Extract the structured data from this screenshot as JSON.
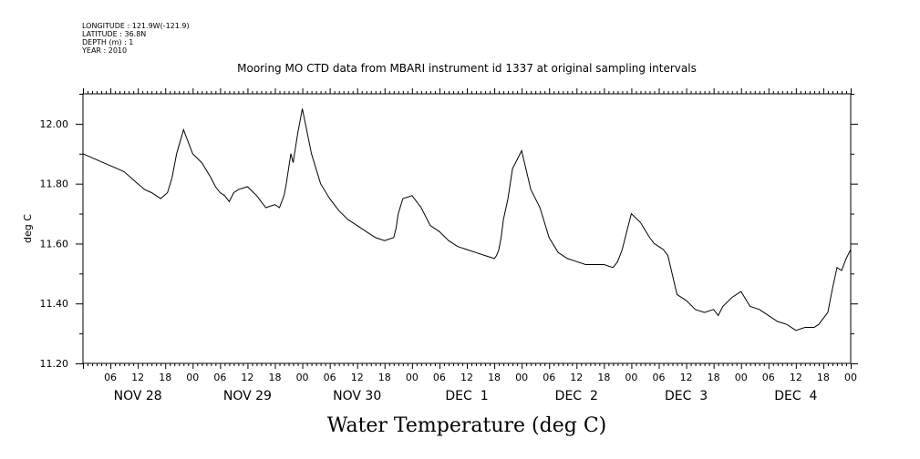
{
  "metadata": {
    "longitude": "LONGITUDE : 121.9W(-121.9)",
    "latitude": "LATITUDE : 36.8N",
    "depth": "DEPTH (m) : 1",
    "year": "YEAR : 2010"
  },
  "chart_data": {
    "type": "line",
    "title": "Mooring MO CTD data from MBARI instrument id 1337 at original sampling intervals",
    "xlabel": "Water Temperature (deg C)",
    "ylabel": "deg C",
    "ylim": [
      11.2,
      12.1
    ],
    "y_ticks": [
      "11.20",
      "11.40",
      "11.60",
      "11.80",
      "12.00"
    ],
    "xlim_hours": [
      0,
      168
    ],
    "x_hour_labels": [
      "06",
      "12",
      "18",
      "00",
      "06",
      "12",
      "18",
      "00",
      "06",
      "12",
      "18",
      "00",
      "06",
      "12",
      "18",
      "00",
      "06",
      "12",
      "18",
      "00",
      "06",
      "12",
      "18",
      "00",
      "06",
      "12",
      "18",
      "00"
    ],
    "x_date_labels": [
      "NOV 28",
      "NOV 29",
      "NOV 30",
      "DEC  1",
      "DEC  2",
      "DEC  3",
      "DEC  4"
    ],
    "series": [
      {
        "color": "#000000",
        "x": [
          0,
          3,
          6,
          9,
          12,
          13.5,
          15,
          17,
          18.5,
          19.5,
          20.5,
          22,
          24,
          26,
          28,
          29,
          30,
          31,
          32,
          33,
          34,
          36,
          38,
          40,
          42,
          43,
          43.5,
          44,
          44.5,
          45,
          45.5,
          46,
          47,
          48,
          50,
          52,
          54,
          56,
          58,
          60,
          62,
          64,
          66,
          68,
          68.5,
          69,
          70,
          72,
          74,
          76,
          78,
          80,
          82,
          84,
          86,
          88,
          90,
          90.5,
          91,
          91.5,
          92,
          93,
          94,
          96,
          98,
          100,
          102,
          104,
          106,
          108,
          110,
          112,
          114,
          116,
          117,
          118,
          119,
          120,
          122,
          124,
          125,
          126,
          127,
          128,
          130,
          132,
          134,
          136,
          138,
          139,
          140,
          142,
          144,
          146,
          148,
          150,
          152,
          154,
          156,
          158,
          160,
          161,
          162,
          163,
          164,
          165,
          166,
          167,
          168
        ],
        "values": [
          11.9,
          11.88,
          11.86,
          11.84,
          11.8,
          11.78,
          11.77,
          11.75,
          11.77,
          11.82,
          11.9,
          11.98,
          11.9,
          11.87,
          11.82,
          11.79,
          11.77,
          11.76,
          11.74,
          11.77,
          11.78,
          11.79,
          11.76,
          11.72,
          11.73,
          11.72,
          11.74,
          11.76,
          11.8,
          11.85,
          11.9,
          11.87,
          11.97,
          12.05,
          11.9,
          11.8,
          11.75,
          11.71,
          11.68,
          11.66,
          11.64,
          11.62,
          11.61,
          11.62,
          11.65,
          11.7,
          11.75,
          11.76,
          11.72,
          11.66,
          11.64,
          11.61,
          11.59,
          11.58,
          11.57,
          11.56,
          11.55,
          11.56,
          11.58,
          11.62,
          11.68,
          11.75,
          11.85,
          11.91,
          11.78,
          11.72,
          11.62,
          11.57,
          11.55,
          11.54,
          11.53,
          11.53,
          11.53,
          11.52,
          11.54,
          11.58,
          11.64,
          11.7,
          11.67,
          11.62,
          11.6,
          11.59,
          11.58,
          11.56,
          11.43,
          11.41,
          11.38,
          11.37,
          11.38,
          11.36,
          11.39,
          11.42,
          11.44,
          11.39,
          11.38,
          11.36,
          11.34,
          11.33,
          11.31,
          11.32,
          11.32,
          11.33,
          11.35,
          11.37,
          11.45,
          11.52,
          11.51,
          11.55,
          11.58
        ]
      }
    ]
  }
}
